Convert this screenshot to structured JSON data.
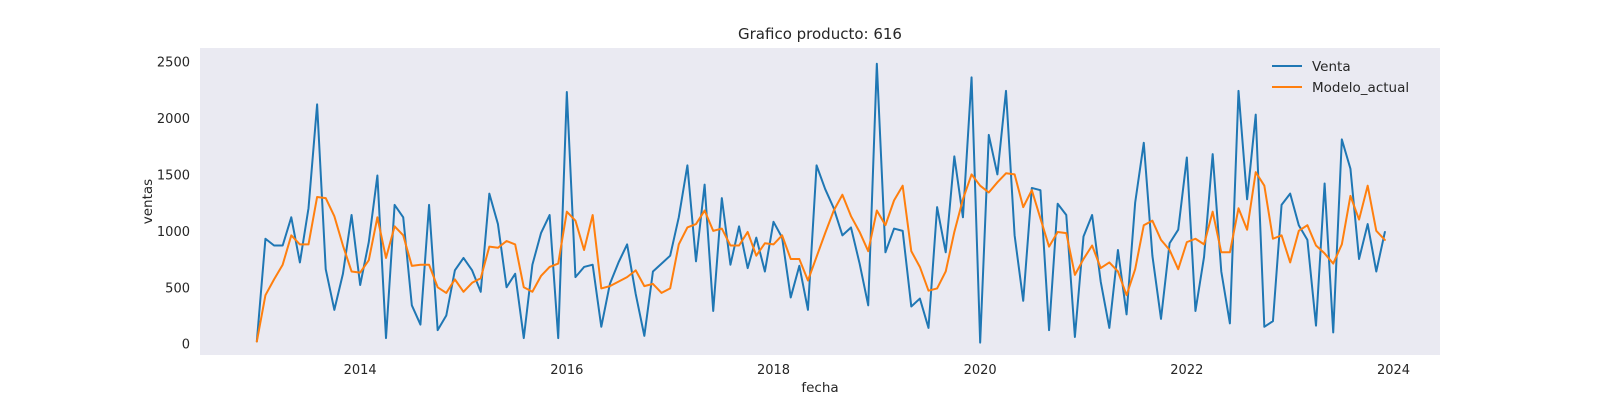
{
  "chart_data": {
    "type": "line",
    "title": "Grafico producto: 616",
    "xlabel": "fecha",
    "ylabel": "ventas",
    "xlim": [
      2012.45,
      2024.45
    ],
    "ylim": [
      -100,
      2620
    ],
    "x_ticks": [
      2014,
      2016,
      2018,
      2020,
      2022,
      2024
    ],
    "y_ticks": [
      0,
      500,
      1000,
      1500,
      2000,
      2500
    ],
    "grid": false,
    "legend_position": "top-right",
    "background_color": "#eaeaf2",
    "start": {
      "year": 2013,
      "month": 1
    },
    "series": [
      {
        "name": "Venta",
        "color": "#1f77b4",
        "values": [
          20,
          930,
          870,
          870,
          1120,
          720,
          1200,
          2120,
          660,
          300,
          620,
          1140,
          520,
          900,
          1490,
          50,
          1230,
          1120,
          340,
          170,
          1230,
          120,
          250,
          650,
          760,
          650,
          460,
          1330,
          1060,
          500,
          620,
          50,
          700,
          980,
          1140,
          50,
          2230,
          590,
          680,
          700,
          150,
          530,
          720,
          880,
          440,
          70,
          640,
          710,
          780,
          1120,
          1580,
          730,
          1410,
          290,
          1290,
          700,
          1040,
          670,
          940,
          640,
          1080,
          940,
          410,
          690,
          300,
          1580,
          1370,
          1200,
          960,
          1030,
          710,
          340,
          2480,
          810,
          1020,
          1000,
          330,
          400,
          140,
          1210,
          810,
          1660,
          1120,
          2360,
          10,
          1850,
          1500,
          2240,
          960,
          380,
          1380,
          1360,
          120,
          1240,
          1140,
          60,
          950,
          1140,
          550,
          140,
          830,
          260,
          1250,
          1780,
          780,
          220,
          890,
          1010,
          1650,
          290,
          770,
          1680,
          640,
          180,
          2240,
          1280,
          2030,
          150,
          200,
          1230,
          1330,
          1050,
          920,
          160,
          1420,
          100,
          1810,
          1550,
          750,
          1060,
          640,
          990
        ]
      },
      {
        "name": "Modelo_actual",
        "color": "#ff7f0e",
        "values": [
          20,
          430,
          570,
          700,
          960,
          880,
          880,
          1300,
          1290,
          1130,
          870,
          640,
          630,
          740,
          1120,
          760,
          1040,
          960,
          690,
          700,
          700,
          500,
          450,
          570,
          460,
          540,
          580,
          860,
          850,
          910,
          880,
          500,
          460,
          600,
          680,
          710,
          1170,
          1090,
          830,
          1140,
          490,
          510,
          550,
          590,
          650,
          510,
          530,
          450,
          490,
          880,
          1030,
          1060,
          1180,
          1000,
          1020,
          870,
          870,
          990,
          780,
          890,
          880,
          960,
          750,
          750,
          560,
          770,
          980,
          1180,
          1320,
          1130,
          990,
          820,
          1180,
          1050,
          1270,
          1400,
          820,
          680,
          470,
          490,
          640,
          990,
          1280,
          1500,
          1400,
          1340,
          1430,
          1510,
          1500,
          1210,
          1360,
          1110,
          860,
          990,
          980,
          610,
          750,
          870,
          670,
          720,
          640,
          430,
          660,
          1050,
          1090,
          920,
          830,
          660,
          900,
          930,
          880,
          1170,
          810,
          810,
          1200,
          1010,
          1520,
          1400,
          930,
          960,
          720,
          1000,
          1050,
          870,
          800,
          710,
          880,
          1310,
          1100,
          1400,
          1000,
          920
        ]
      }
    ]
  }
}
